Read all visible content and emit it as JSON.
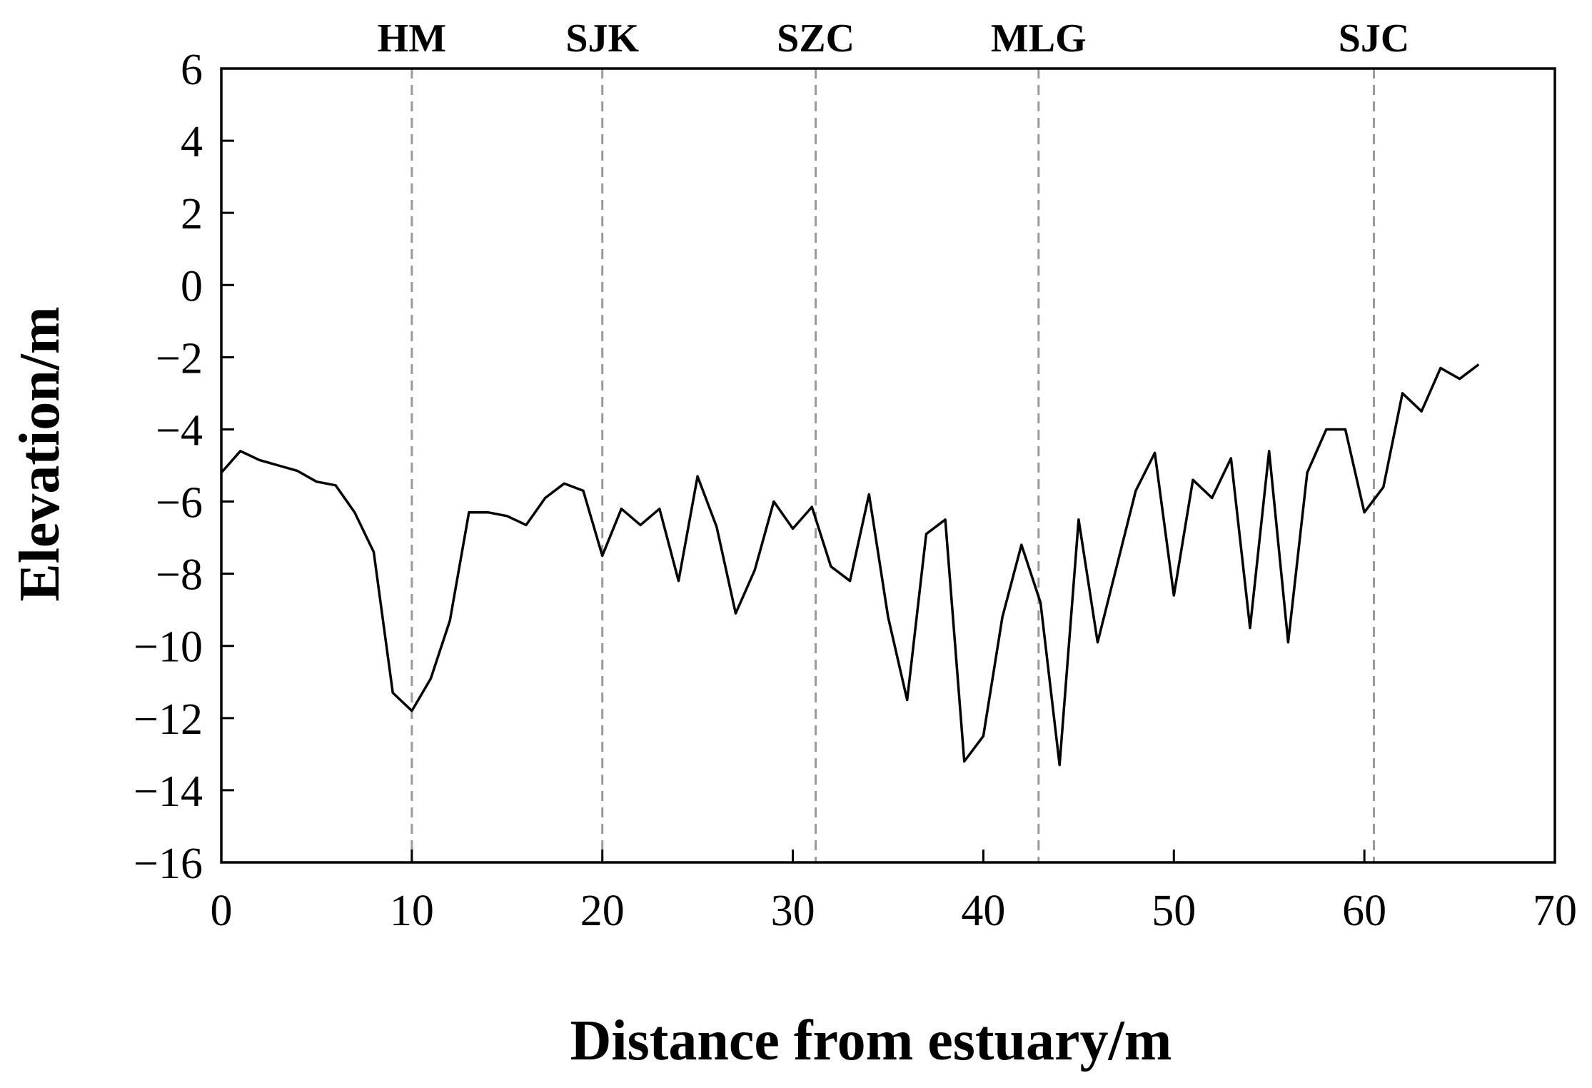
{
  "chart_data": {
    "type": "line",
    "title": "",
    "xlabel": "Distance from estuary/m",
    "ylabel": "Elevation/m",
    "xlim": [
      0,
      70
    ],
    "ylim": [
      -16,
      6
    ],
    "x_ticks": [
      0,
      10,
      20,
      30,
      40,
      50,
      60,
      70
    ],
    "y_ticks": [
      6,
      4,
      2,
      0,
      -2,
      -4,
      -6,
      -8,
      -10,
      -12,
      -14,
      -16
    ],
    "x_tick_labels": [
      "0",
      "10",
      "20",
      "30",
      "40",
      "50",
      "60",
      "70"
    ],
    "y_tick_labels": [
      "6",
      "4",
      "2",
      "0",
      "−2",
      "−4",
      "−6",
      "−8",
      "−10",
      "−12",
      "−14",
      "−16"
    ],
    "grid": false,
    "legend": "none",
    "line_color": "#000000",
    "reference_line_color": "#9a9a9a",
    "stations": [
      {
        "label": "HM",
        "x": 10
      },
      {
        "label": "SJK",
        "x": 20
      },
      {
        "label": "SZC",
        "x": 31.2
      },
      {
        "label": "MLG",
        "x": 42.9
      },
      {
        "label": "SJC",
        "x": 60.5
      }
    ],
    "series": [
      {
        "points": [
          [
            0,
            -5.2
          ],
          [
            1,
            -4.6
          ],
          [
            2,
            -4.85
          ],
          [
            3,
            -5.0
          ],
          [
            4,
            -5.15
          ],
          [
            5,
            -5.45
          ],
          [
            6,
            -5.55
          ],
          [
            7,
            -6.3
          ],
          [
            8,
            -7.4
          ],
          [
            9,
            -11.3
          ],
          [
            10,
            -11.8
          ],
          [
            11,
            -10.9
          ],
          [
            12,
            -9.3
          ],
          [
            13,
            -6.3
          ],
          [
            14,
            -6.3
          ],
          [
            15,
            -6.4
          ],
          [
            16,
            -6.65
          ],
          [
            17,
            -5.9
          ],
          [
            18,
            -5.5
          ],
          [
            19,
            -5.7
          ],
          [
            20,
            -7.5
          ],
          [
            21,
            -6.2
          ],
          [
            22,
            -6.65
          ],
          [
            23,
            -6.2
          ],
          [
            24,
            -8.2
          ],
          [
            25,
            -5.3
          ],
          [
            26,
            -6.7
          ],
          [
            27,
            -9.1
          ],
          [
            28,
            -7.9
          ],
          [
            29,
            -6.0
          ],
          [
            30,
            -6.75
          ],
          [
            31,
            -6.15
          ],
          [
            32,
            -7.8
          ],
          [
            33,
            -8.2
          ],
          [
            34,
            -5.8
          ],
          [
            35,
            -9.2
          ],
          [
            36,
            -11.5
          ],
          [
            37,
            -6.9
          ],
          [
            38,
            -6.5
          ],
          [
            39,
            -13.2
          ],
          [
            40,
            -12.5
          ],
          [
            41,
            -9.2
          ],
          [
            42,
            -7.2
          ],
          [
            43,
            -8.8
          ],
          [
            44,
            -13.3
          ],
          [
            45,
            -6.5
          ],
          [
            46,
            -9.9
          ],
          [
            47,
            -7.8
          ],
          [
            48,
            -5.7
          ],
          [
            49,
            -4.65
          ],
          [
            50,
            -8.6
          ],
          [
            51,
            -5.4
          ],
          [
            52,
            -5.9
          ],
          [
            53,
            -4.8
          ],
          [
            54,
            -9.5
          ],
          [
            55,
            -4.6
          ],
          [
            56,
            -9.9
          ],
          [
            57,
            -5.2
          ],
          [
            58,
            -4.0
          ],
          [
            59,
            -4.0
          ],
          [
            60,
            -6.3
          ],
          [
            61,
            -5.6
          ],
          [
            62,
            -3.0
          ],
          [
            63,
            -3.5
          ],
          [
            64,
            -2.3
          ],
          [
            65,
            -2.6
          ],
          [
            66,
            -2.2
          ]
        ]
      }
    ]
  }
}
